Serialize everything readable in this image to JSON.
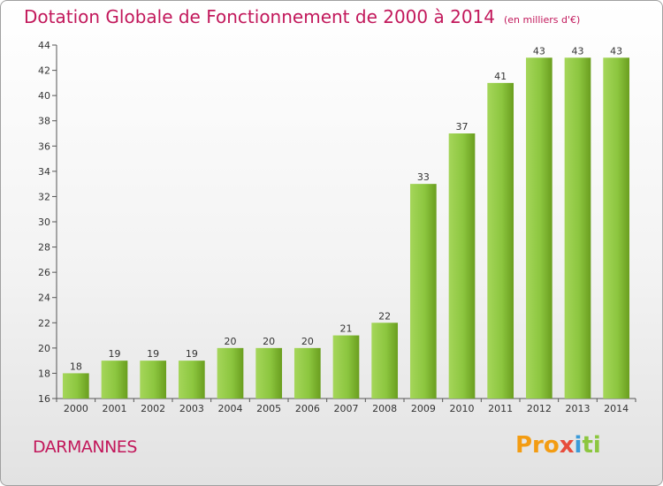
{
  "title": "Dotation Globale de Fonctionnement de 2000 à 2014",
  "unit_note": "(en milliers d'€)",
  "place": "DARMANNES",
  "logo": "Proxiti",
  "colors": {
    "title": "#c2185b",
    "bar_light": "#a5d65a",
    "bar_dark": "#6a9e1f"
  },
  "chart_data": {
    "type": "bar",
    "title": "Dotation Globale de Fonctionnement de 2000 à 2014",
    "subtitle": "(en milliers d'€)",
    "categories": [
      "2000",
      "2001",
      "2002",
      "2003",
      "2004",
      "2005",
      "2006",
      "2007",
      "2008",
      "2009",
      "2010",
      "2011",
      "2012",
      "2013",
      "2014"
    ],
    "values": [
      18,
      19,
      19,
      19,
      20,
      20,
      20,
      21,
      22,
      33,
      37,
      41,
      43,
      43,
      43
    ],
    "ylim": [
      16,
      44
    ],
    "yticks": [
      16,
      18,
      20,
      22,
      24,
      26,
      28,
      30,
      32,
      34,
      36,
      38,
      40,
      42,
      44
    ],
    "xlabel": "",
    "ylabel": "",
    "grid": false,
    "data_labels": true
  }
}
